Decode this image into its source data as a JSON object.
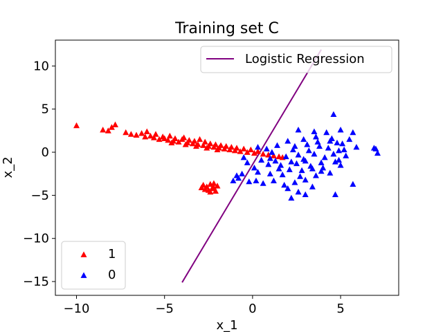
{
  "chart_data": {
    "type": "scatter",
    "title": "Training set C",
    "xlabel": "x_1",
    "ylabel": "x_2",
    "xlim": [
      -11.2,
      8.3
    ],
    "ylim": [
      -16.6,
      13.0
    ],
    "xticks": [
      -10,
      -5,
      0,
      5
    ],
    "yticks": [
      -15,
      -10,
      -5,
      0,
      5,
      10
    ],
    "tick_labels_x": [
      "−10",
      "−5",
      "0",
      "5"
    ],
    "tick_labels_y": [
      "−15",
      "−10",
      "−5",
      "0",
      "5",
      "10"
    ],
    "grid": false,
    "legends": {
      "line_legend_position": "upper-right",
      "marker_legend_position": "lower-left"
    },
    "series": [
      {
        "name": "1",
        "color": "#ff0000",
        "marker": "triangle-up",
        "points": [
          [
            -10.0,
            3.1
          ],
          [
            -8.5,
            2.6
          ],
          [
            -8.2,
            2.5
          ],
          [
            -8.0,
            2.9
          ],
          [
            -7.8,
            3.2
          ],
          [
            -7.2,
            2.3
          ],
          [
            -6.9,
            2.1
          ],
          [
            -6.6,
            2.0
          ],
          [
            -6.3,
            2.2
          ],
          [
            -6.1,
            1.8
          ],
          [
            -6.0,
            2.4
          ],
          [
            -5.8,
            1.9
          ],
          [
            -5.6,
            1.7
          ],
          [
            -5.5,
            2.1
          ],
          [
            -5.3,
            1.5
          ],
          [
            -5.1,
            1.8
          ],
          [
            -5.0,
            1.6
          ],
          [
            -4.8,
            1.4
          ],
          [
            -4.7,
            1.9
          ],
          [
            -4.5,
            1.3
          ],
          [
            -4.4,
            1.6
          ],
          [
            -4.2,
            1.2
          ],
          [
            -4.0,
            1.5
          ],
          [
            -3.9,
            1.7
          ],
          [
            -3.7,
            1.1
          ],
          [
            -3.6,
            1.4
          ],
          [
            -3.4,
            1.0
          ],
          [
            -3.3,
            1.3
          ],
          [
            -3.1,
            0.9
          ],
          [
            -3.0,
            1.5
          ],
          [
            -2.8,
            0.8
          ],
          [
            -2.7,
            1.2
          ],
          [
            -2.5,
            0.7
          ],
          [
            -2.4,
            1.0
          ],
          [
            -2.2,
            0.6
          ],
          [
            -2.1,
            0.9
          ],
          [
            -1.9,
            0.5
          ],
          [
            -1.8,
            0.8
          ],
          [
            -1.6,
            0.4
          ],
          [
            -1.5,
            0.7
          ],
          [
            -1.3,
            0.3
          ],
          [
            -1.2,
            0.6
          ],
          [
            -1.0,
            0.2
          ],
          [
            -0.9,
            0.5
          ],
          [
            -0.7,
            0.1
          ],
          [
            -0.5,
            0.4
          ],
          [
            -0.3,
            0.0
          ],
          [
            -0.1,
            0.3
          ],
          [
            0.1,
            -0.1
          ],
          [
            0.3,
            0.1
          ],
          [
            0.6,
            -0.2
          ],
          [
            0.9,
            -0.3
          ],
          [
            1.2,
            -0.4
          ],
          [
            1.5,
            -0.5
          ],
          [
            1.7,
            -0.6
          ],
          [
            -4.6,
            1.1
          ],
          [
            -3.8,
            0.9
          ],
          [
            -3.2,
            0.7
          ],
          [
            -2.6,
            0.5
          ],
          [
            -2.0,
            0.3
          ],
          [
            -2.8,
            -3.8
          ],
          [
            -2.6,
            -4.0
          ],
          [
            -2.4,
            -3.7
          ],
          [
            -2.2,
            -4.1
          ],
          [
            -2.0,
            -3.9
          ],
          [
            -2.7,
            -4.3
          ],
          [
            -2.5,
            -4.4
          ],
          [
            -2.3,
            -4.2
          ],
          [
            -2.1,
            -4.5
          ],
          [
            -2.9,
            -4.1
          ],
          [
            -2.4,
            -4.6
          ],
          [
            -2.2,
            -3.6
          ]
        ]
      },
      {
        "name": "0",
        "color": "#0000ff",
        "marker": "triangle-up",
        "points": [
          [
            -0.5,
            -0.6
          ],
          [
            -0.3,
            -1.2
          ],
          [
            0.1,
            -1.8
          ],
          [
            0.3,
            0.6
          ],
          [
            0.8,
            0.4
          ],
          [
            1.0,
            -2.5
          ],
          [
            1.3,
            -1.0
          ],
          [
            1.6,
            -1.5
          ],
          [
            1.9,
            -0.5
          ],
          [
            2.1,
            -2.0
          ],
          [
            2.3,
            0.3
          ],
          [
            2.5,
            -1.3
          ],
          [
            2.7,
            -2.8
          ],
          [
            2.9,
            -0.8
          ],
          [
            3.1,
            0.9
          ],
          [
            3.3,
            -1.6
          ],
          [
            3.5,
            -0.2
          ],
          [
            3.7,
            1.2
          ],
          [
            3.9,
            -2.2
          ],
          [
            4.1,
            -0.6
          ],
          [
            4.3,
            0.5
          ],
          [
            4.5,
            1.6
          ],
          [
            4.7,
            -1.1
          ],
          [
            4.9,
            0.2
          ],
          [
            5.1,
            1.0
          ],
          [
            5.3,
            -0.4
          ],
          [
            5.5,
            1.5
          ],
          [
            5.7,
            2.3
          ],
          [
            5.9,
            0.6
          ],
          [
            6.9,
            0.5
          ],
          [
            7.1,
            -0.1
          ],
          [
            7.0,
            0.4
          ],
          [
            4.6,
            4.4
          ],
          [
            2.6,
            2.6
          ],
          [
            3.5,
            2.4
          ],
          [
            4.2,
            2.3
          ],
          [
            5.0,
            2.6
          ],
          [
            1.2,
            -3.3
          ],
          [
            1.8,
            -3.8
          ],
          [
            2.0,
            -4.2
          ],
          [
            2.4,
            -3.5
          ],
          [
            2.6,
            -4.6
          ],
          [
            3.0,
            -3.2
          ],
          [
            3.4,
            -4.0
          ],
          [
            0.6,
            -3.6
          ],
          [
            -0.2,
            -3.4
          ],
          [
            0.2,
            -3.3
          ],
          [
            -0.8,
            -3.0
          ],
          [
            -0.6,
            -2.5
          ],
          [
            -0.9,
            -2.7
          ],
          [
            -1.1,
            -3.3
          ],
          [
            2.2,
            -5.3
          ],
          [
            3.0,
            -4.9
          ],
          [
            4.7,
            -4.9
          ],
          [
            5.7,
            -3.7
          ],
          [
            1.5,
            -1.9
          ],
          [
            2.8,
            -2.1
          ],
          [
            3.6,
            -2.7
          ],
          [
            4.0,
            -1.8
          ],
          [
            4.4,
            -2.4
          ],
          [
            5.0,
            -1.5
          ],
          [
            1.1,
            0.0
          ],
          [
            1.4,
            0.8
          ],
          [
            2.0,
            1.3
          ],
          [
            2.4,
            0.7
          ],
          [
            3.2,
            0.2
          ],
          [
            3.8,
            0.7
          ],
          [
            4.8,
            1.1
          ],
          [
            5.2,
            0.3
          ],
          [
            0.5,
            -0.9
          ],
          [
            0.9,
            -1.4
          ],
          [
            2.6,
            -0.3
          ],
          [
            3.0,
            -1.0
          ],
          [
            3.4,
            -1.9
          ],
          [
            4.6,
            -0.2
          ],
          [
            1.7,
            -2.6
          ],
          [
            2.2,
            -1.1
          ],
          [
            2.9,
            1.5
          ],
          [
            3.6,
            1.8
          ],
          [
            4.4,
            1.3
          ],
          [
            0.3,
            -2.3
          ],
          [
            1.0,
            -0.7
          ],
          [
            3.9,
            -1.2
          ],
          [
            4.9,
            -0.9
          ]
        ]
      }
    ],
    "lines": [
      {
        "name": "Logistic Regression",
        "color": "#800080",
        "points": [
          [
            -4.0,
            -15.1
          ],
          [
            3.9,
            11.9
          ]
        ]
      }
    ]
  }
}
